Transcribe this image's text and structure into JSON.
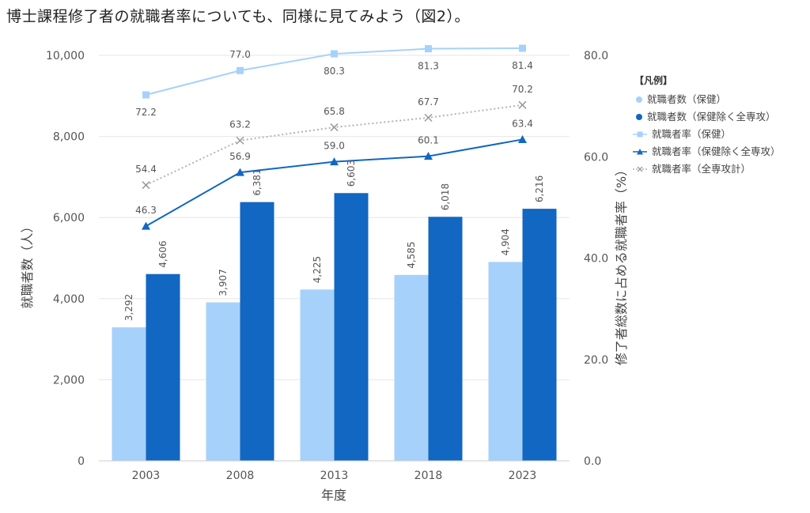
{
  "heading": "博士課程修了者の就職者率についても、同様に見てみよう（図2）。",
  "chart_data": {
    "type": "bar",
    "categories": [
      "2003",
      "2008",
      "2013",
      "2018",
      "2023"
    ],
    "xlabel": "年度",
    "ylabel": "就職者数（人）",
    "ylabel_right": "修了者総数に占める就職者率（%）",
    "ylim": [
      0,
      10000
    ],
    "yticks": [
      "0",
      "2,000",
      "4,000",
      "6,000",
      "8,000",
      "10,000"
    ],
    "ylim_right": [
      0,
      80
    ],
    "yticks_right": [
      "0.0",
      "20.0",
      "40.0",
      "60.0",
      "80.0"
    ],
    "grid": true,
    "legend_position": "right",
    "legend_title": "【凡例】",
    "bar_series": [
      {
        "name": "就職者数（保健）",
        "color": "#a6d1fb",
        "values": [
          3292,
          3907,
          4225,
          4585,
          4904
        ],
        "labels": [
          "3,292",
          "3,907",
          "4,225",
          "4,585",
          "4,904"
        ]
      },
      {
        "name": "就職者数（保健除く全専攻）",
        "color": "#1167c1",
        "values": [
          4606,
          6381,
          6603,
          6018,
          6216
        ],
        "labels": [
          "4,606",
          "6,381",
          "6,603",
          "6,018",
          "6,216"
        ]
      }
    ],
    "line_series": [
      {
        "name": "就職者率（保健）",
        "color": "#a6d1fb",
        "marker": "square",
        "style": "solid",
        "values": [
          72.2,
          77.0,
          80.3,
          81.3,
          81.4
        ],
        "labels": [
          "72.2",
          "77.0",
          "80.3",
          "81.3",
          "81.4"
        ]
      },
      {
        "name": "就職者率（保健除く全専攻）",
        "color": "#1167c1",
        "marker": "triangle",
        "style": "solid",
        "values": [
          46.3,
          56.9,
          59.0,
          60.1,
          63.4
        ],
        "labels": [
          "46.3",
          "56.9",
          "59.0",
          "60.1",
          "63.4"
        ]
      },
      {
        "name": "就職者率（全専攻計）",
        "color": "#b3b3b3",
        "marker": "x",
        "style": "dotted",
        "values": [
          54.4,
          63.2,
          65.8,
          67.7,
          70.2
        ],
        "labels": [
          "54.4",
          "63.2",
          "65.8",
          "67.7",
          "70.2"
        ]
      }
    ]
  }
}
